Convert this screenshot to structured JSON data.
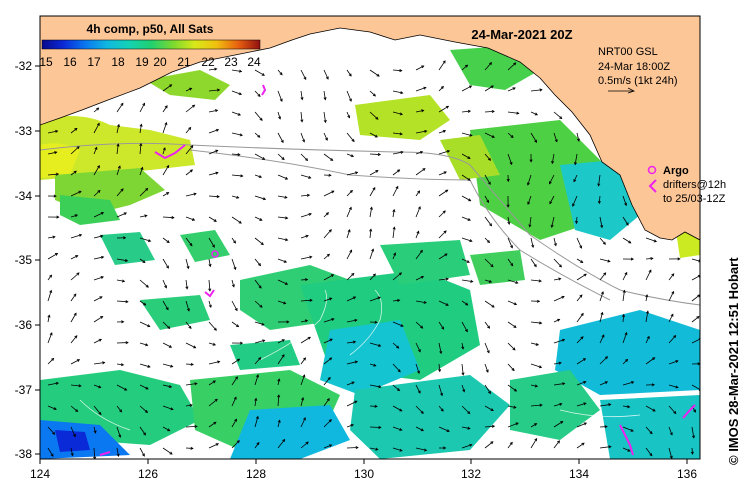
{
  "title": "24-Mar-2021 20Z",
  "colorbar": {
    "label": "4h comp, p50, All Sats",
    "ticks": [
      "15",
      "16",
      "17",
      "18",
      "19",
      "20",
      "21",
      "22",
      "23",
      "24"
    ],
    "stops": [
      "#08088a",
      "#0a2ad8",
      "#0a78f0",
      "#10b8e0",
      "#14d2b4",
      "#20d070",
      "#7ad830",
      "#d8e81a",
      "#f0c010",
      "#e86010",
      "#c01818",
      "#801010"
    ]
  },
  "xaxis": {
    "ticks": [
      "124",
      "126",
      "128",
      "130",
      "132",
      "134",
      "136"
    ]
  },
  "yaxis": {
    "ticks": [
      "-32",
      "-33",
      "-34",
      "-35",
      "-36",
      "-37",
      "-38"
    ]
  },
  "current_legend": {
    "line1": "NRT00 GSL",
    "line2": "24-Mar 18:00Z",
    "line3": "0.5m/s (1kt 24h)"
  },
  "argo_legend": {
    "label": "Argo",
    "line1": "drifters@12h",
    "line2": "to 25/03-12Z"
  },
  "credit": "© IMOS 28-Mar-2021 12:51 Hobart",
  "colors": {
    "land": "#fdc697",
    "argo": "#ee22ee",
    "arrow": "#000000",
    "isobath": "#999999"
  }
}
